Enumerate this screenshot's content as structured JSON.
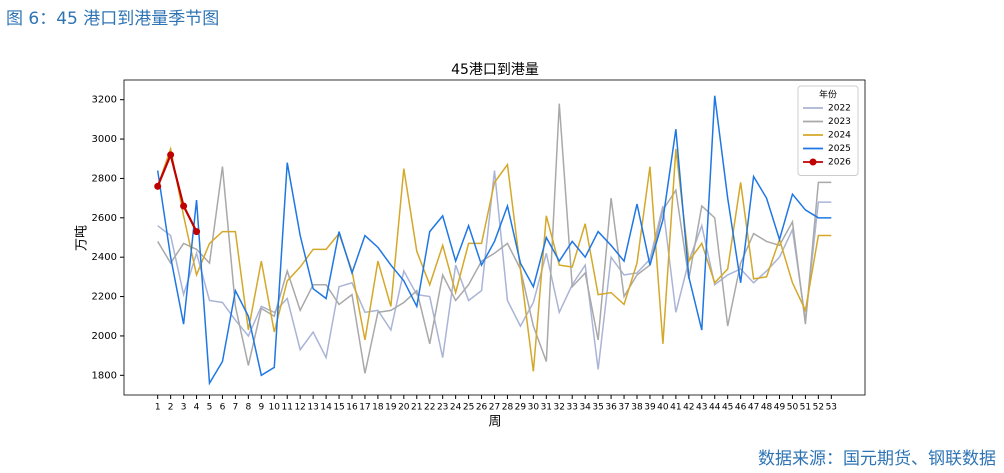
{
  "header": {
    "title": "图 6：45 港口到港量季节图"
  },
  "footer": {
    "source": "数据来源：国元期货、钢联数据"
  },
  "chart_data": {
    "type": "line",
    "title": "45港口到港量",
    "x_label": "周",
    "y_label": "万吨",
    "legend_title": "年份",
    "legend": "upper right",
    "grid": false,
    "x": [
      1,
      2,
      3,
      4,
      5,
      6,
      7,
      8,
      9,
      10,
      11,
      12,
      13,
      14,
      15,
      16,
      17,
      18,
      19,
      20,
      21,
      22,
      23,
      24,
      25,
      26,
      27,
      28,
      29,
      30,
      31,
      32,
      33,
      34,
      35,
      36,
      37,
      38,
      39,
      40,
      41,
      42,
      43,
      44,
      45,
      46,
      47,
      48,
      49,
      50,
      51,
      52,
      53
    ],
    "xlim": [
      -1.6,
      55.6
    ],
    "xticks": [
      1,
      2,
      3,
      4,
      5,
      6,
      7,
      8,
      9,
      10,
      11,
      12,
      13,
      14,
      15,
      16,
      17,
      18,
      19,
      20,
      21,
      22,
      23,
      24,
      25,
      26,
      27,
      28,
      29,
      30,
      31,
      32,
      33,
      34,
      35,
      36,
      37,
      38,
      39,
      40,
      41,
      42,
      43,
      44,
      45,
      46,
      47,
      48,
      49,
      50,
      51,
      52,
      53
    ],
    "ylim": [
      1700,
      3300
    ],
    "yticks": [
      1800,
      2000,
      2200,
      2400,
      2600,
      2800,
      3000,
      3200
    ],
    "series": [
      {
        "name": "2022",
        "color": "#aab4d6",
        "values": [
          2560,
          2510,
          2210,
          2420,
          2180,
          2170,
          2080,
          2000,
          2150,
          2120,
          2190,
          1930,
          2020,
          1890,
          2250,
          2270,
          2120,
          2130,
          2030,
          2330,
          2210,
          2200,
          1890,
          2360,
          2180,
          2230,
          2840,
          2180,
          2050,
          2170,
          2420,
          2120,
          2260,
          2360,
          1830,
          2400,
          2310,
          2320,
          2390,
          2660,
          2120,
          2380,
          2560,
          2260,
          2310,
          2340,
          2270,
          2330,
          2400,
          2540,
          2080,
          2680,
          2680
        ]
      },
      {
        "name": "2023",
        "color": "#a9a9a9",
        "values": [
          2480,
          2370,
          2470,
          2440,
          2370,
          2860,
          2150,
          1850,
          2140,
          2100,
          2330,
          2130,
          2260,
          2260,
          2160,
          2210,
          1810,
          2120,
          2130,
          2170,
          2230,
          1960,
          2310,
          2180,
          2260,
          2380,
          2420,
          2470,
          2340,
          2050,
          1870,
          3180,
          2250,
          2320,
          1980,
          2700,
          2200,
          2310,
          2360,
          2640,
          2740,
          2290,
          2660,
          2600,
          2050,
          2370,
          2520,
          2480,
          2460,
          2580,
          2060,
          2780,
          2780
        ]
      },
      {
        "name": "2024",
        "color": "#d4a82a",
        "values": [
          2760,
          2950,
          2610,
          2310,
          2470,
          2530,
          2530,
          2030,
          2380,
          2020,
          2280,
          2350,
          2440,
          2440,
          2520,
          2330,
          1980,
          2380,
          2150,
          2850,
          2430,
          2260,
          2460,
          2220,
          2470,
          2470,
          2780,
          2870,
          2340,
          1820,
          2610,
          2360,
          2350,
          2570,
          2210,
          2220,
          2160,
          2370,
          2860,
          1960,
          2950,
          2380,
          2470,
          2270,
          2340,
          2780,
          2290,
          2300,
          2490,
          2270,
          2130,
          2510,
          2510
        ]
      },
      {
        "name": "2025",
        "color": "#1f77e4",
        "values": [
          2840,
          2400,
          2060,
          2690,
          1760,
          1870,
          2230,
          2100,
          1800,
          1840,
          2880,
          2510,
          2240,
          2190,
          2530,
          2320,
          2510,
          2450,
          2360,
          2280,
          2150,
          2530,
          2610,
          2380,
          2560,
          2360,
          2480,
          2660,
          2370,
          2250,
          2500,
          2380,
          2480,
          2400,
          2530,
          2460,
          2380,
          2670,
          2360,
          2590,
          3050,
          2300,
          2030,
          3220,
          2700,
          2270,
          2810,
          2700,
          2490,
          2720,
          2640,
          2600,
          2600
        ]
      },
      {
        "name": "2026",
        "color": "#c00000",
        "marker": "o",
        "values": [
          2760,
          2920,
          2660,
          2530,
          null,
          null,
          null,
          null,
          null,
          null,
          null,
          null,
          null,
          null,
          null,
          null,
          null,
          null,
          null,
          null,
          null,
          null,
          null,
          null,
          null,
          null,
          null,
          null,
          null,
          null,
          null,
          null,
          null,
          null,
          null,
          null,
          null,
          null,
          null,
          null,
          null,
          null,
          null,
          null,
          null,
          null,
          null,
          null,
          null,
          null,
          null,
          null,
          null
        ]
      }
    ]
  }
}
